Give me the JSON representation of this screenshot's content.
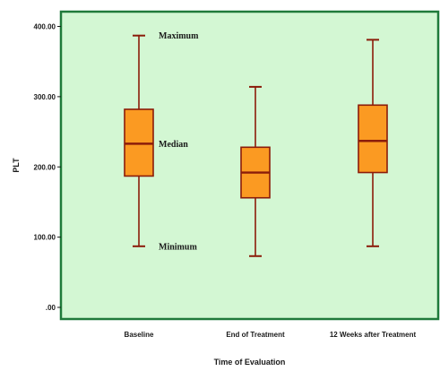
{
  "chart_data": {
    "type": "box",
    "title": "",
    "xlabel": "Time of Evaluation",
    "ylabel": "PLT",
    "ylim": [
      0,
      420
    ],
    "yticks": [
      {
        "value": 0,
        "label": ".00"
      },
      {
        "value": 100,
        "label": "100.00"
      },
      {
        "value": 200,
        "label": "200.00"
      },
      {
        "value": 300,
        "label": "300.00"
      },
      {
        "value": 400,
        "label": "400.00"
      }
    ],
    "categories": [
      "Baseline",
      "End of Treatment",
      "12 Weeks after Treatment"
    ],
    "boxes": [
      {
        "min": 87,
        "q1": 187,
        "median": 233,
        "q3": 282,
        "max": 387
      },
      {
        "min": 73,
        "q1": 156,
        "median": 192,
        "q3": 228,
        "max": 314
      },
      {
        "min": 87,
        "q1": 192,
        "median": 237,
        "q3": 288,
        "max": 381
      }
    ],
    "annotations": [
      {
        "text": "Maximum",
        "category": 0,
        "value": 387
      },
      {
        "text": "Median",
        "category": 0,
        "value": 233
      },
      {
        "text": "Minimum",
        "category": 0,
        "value": 87
      }
    ],
    "colors": {
      "plot_background": "#d3f7d3",
      "plot_border": "#1f7a3a",
      "box_fill": "#fb9a22",
      "box_stroke": "#8b1c0a",
      "whisker": "#8b1c0a"
    }
  }
}
